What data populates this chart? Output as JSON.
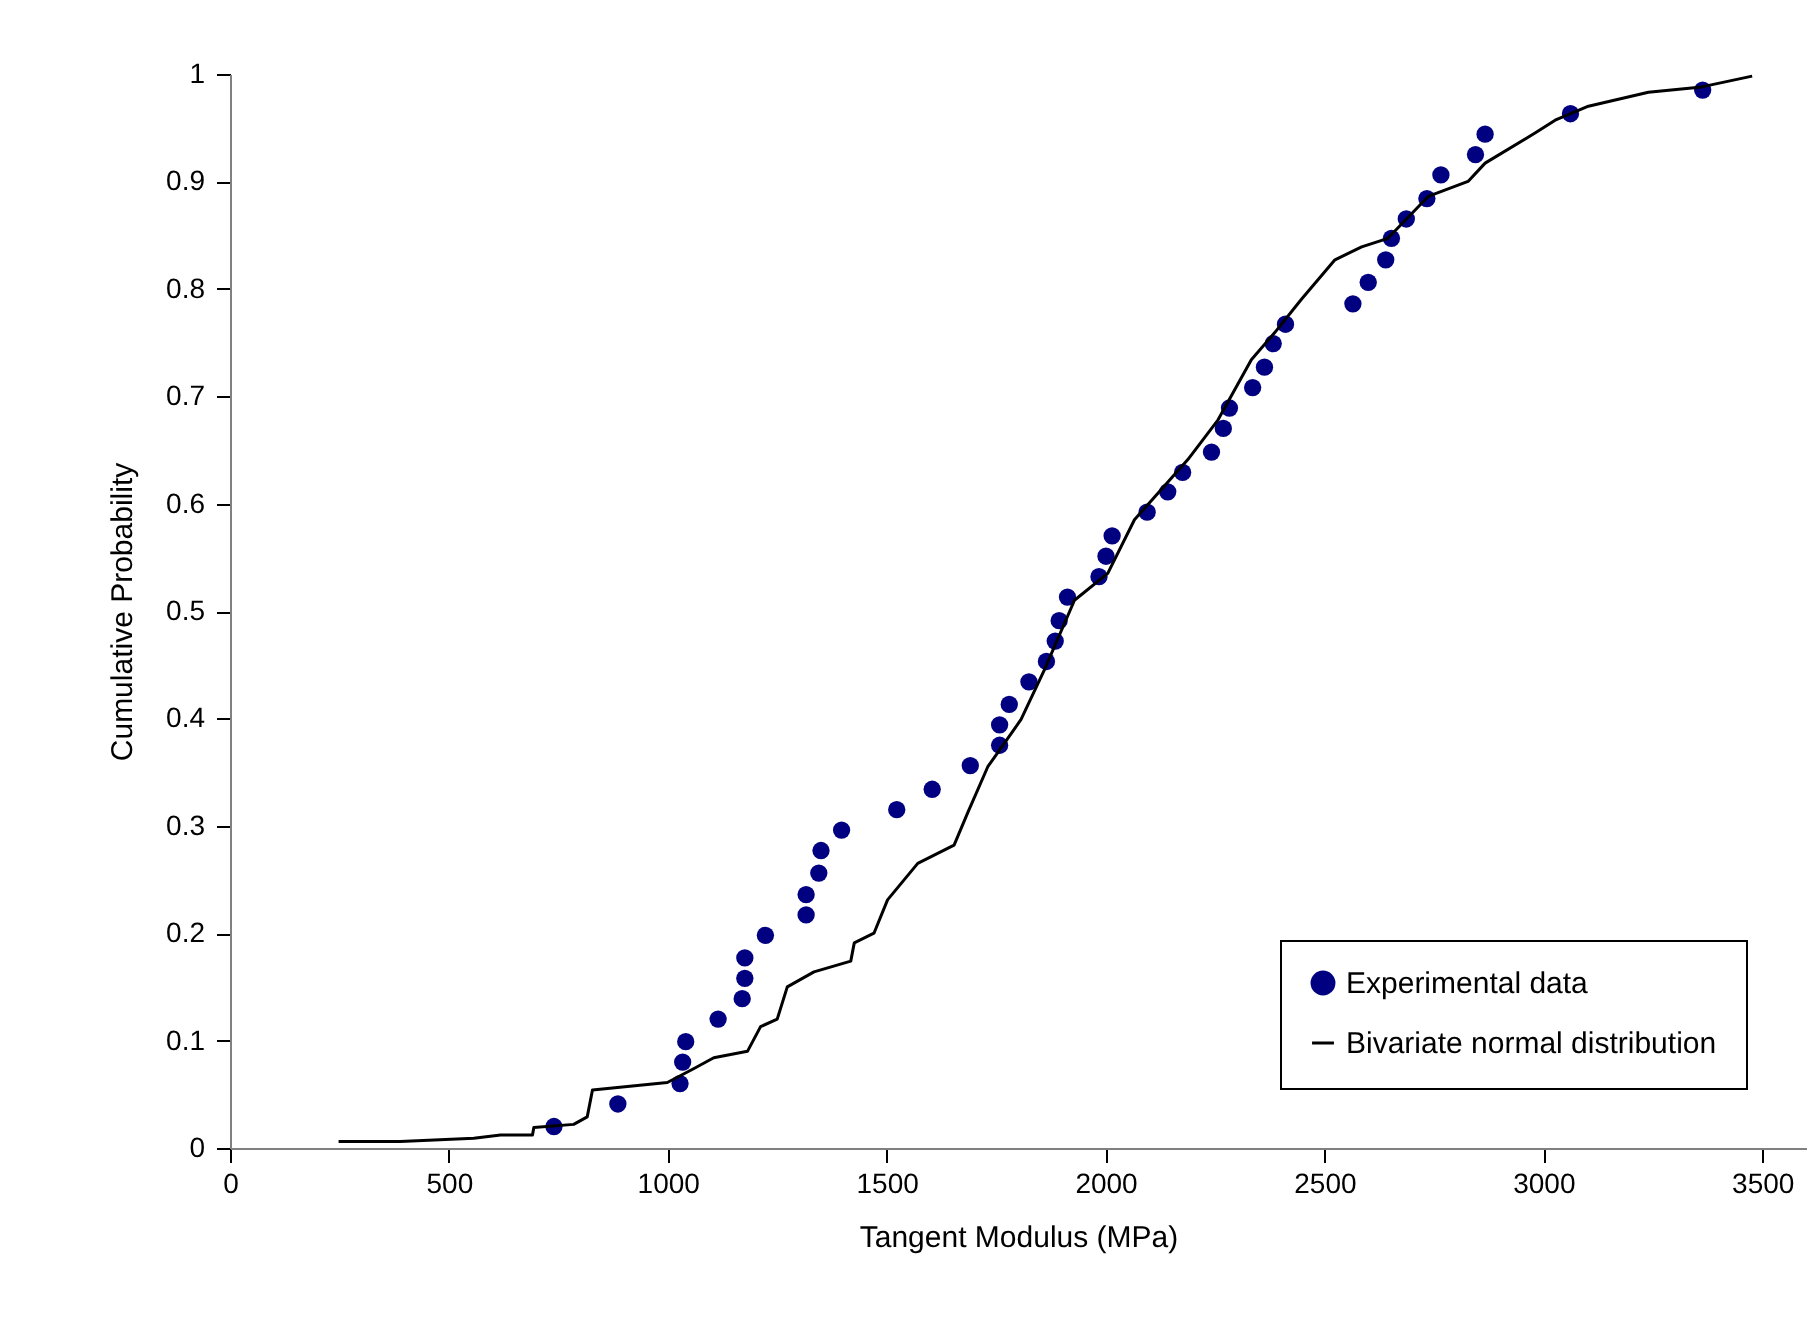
{
  "chart_data": {
    "type": "scatter",
    "xlabel": "Tangent Modulus (MPa)",
    "ylabel": "Cumulative Probability",
    "xlim": [
      0,
      3600
    ],
    "ylim": [
      0,
      1
    ],
    "xticks": [
      0,
      500,
      1000,
      1500,
      2000,
      2500,
      3000,
      3500
    ],
    "yticks": [
      0,
      0.1,
      0.2,
      0.3,
      0.4,
      0.5,
      0.6,
      0.7,
      0.8,
      0.9,
      1
    ],
    "grid": false,
    "legend": "bottom right",
    "series": [
      {
        "name": "Experimental data",
        "type": "scatter",
        "marker": "circle",
        "color": "#000080",
        "x": [
          740,
          886,
          1028,
          1034,
          1041,
          1115,
          1170,
          1176,
          1176,
          1223,
          1316,
          1316,
          1345,
          1350,
          1397,
          1523,
          1604,
          1691,
          1758,
          1758,
          1780,
          1825,
          1865,
          1885,
          1894,
          1913,
          1985,
          2001,
          2015,
          2095,
          2142,
          2176,
          2242,
          2269,
          2283,
          2336,
          2363,
          2383,
          2411,
          2565,
          2600,
          2640,
          2653,
          2687,
          2734,
          2766,
          2845,
          2867,
          3062,
          3364
        ],
        "values": [
          0.02,
          0.041,
          0.06,
          0.08,
          0.099,
          0.12,
          0.139,
          0.158,
          0.177,
          0.198,
          0.217,
          0.236,
          0.256,
          0.277,
          0.296,
          0.315,
          0.334,
          0.356,
          0.375,
          0.394,
          0.413,
          0.434,
          0.453,
          0.472,
          0.491,
          0.513,
          0.532,
          0.551,
          0.57,
          0.592,
          0.611,
          0.629,
          0.648,
          0.67,
          0.689,
          0.708,
          0.727,
          0.749,
          0.767,
          0.786,
          0.806,
          0.827,
          0.847,
          0.865,
          0.884,
          0.906,
          0.925,
          0.944,
          0.963,
          0.985
        ]
      },
      {
        "name": "Bivariate normal distribution",
        "type": "line",
        "color": "#000000",
        "line_style": "solid",
        "x": [
          248,
          389,
          557,
          618,
          691,
          694,
          785,
          816,
          828,
          999,
          1060,
          1105,
          1182,
          1212,
          1250,
          1273,
          1334,
          1418,
          1426,
          1471,
          1502,
          1571,
          1654,
          1685,
          1731,
          1807,
          1860,
          1929,
          2005,
          2066,
          2188,
          2257,
          2333,
          2386,
          2447,
          2524,
          2585,
          2645,
          2737,
          2828,
          2867,
          2981,
          3027,
          3103,
          3240,
          3362,
          3477
        ],
        "values": [
          0.006,
          0.006,
          0.009,
          0.012,
          0.012,
          0.019,
          0.022,
          0.029,
          0.054,
          0.061,
          0.074,
          0.084,
          0.09,
          0.113,
          0.12,
          0.15,
          0.164,
          0.174,
          0.191,
          0.2,
          0.231,
          0.265,
          0.282,
          0.312,
          0.355,
          0.399,
          0.445,
          0.51,
          0.535,
          0.585,
          0.641,
          0.678,
          0.734,
          0.759,
          0.79,
          0.827,
          0.839,
          0.847,
          0.886,
          0.9,
          0.917,
          0.945,
          0.957,
          0.97,
          0.983,
          0.988,
          0.998
        ]
      }
    ]
  }
}
